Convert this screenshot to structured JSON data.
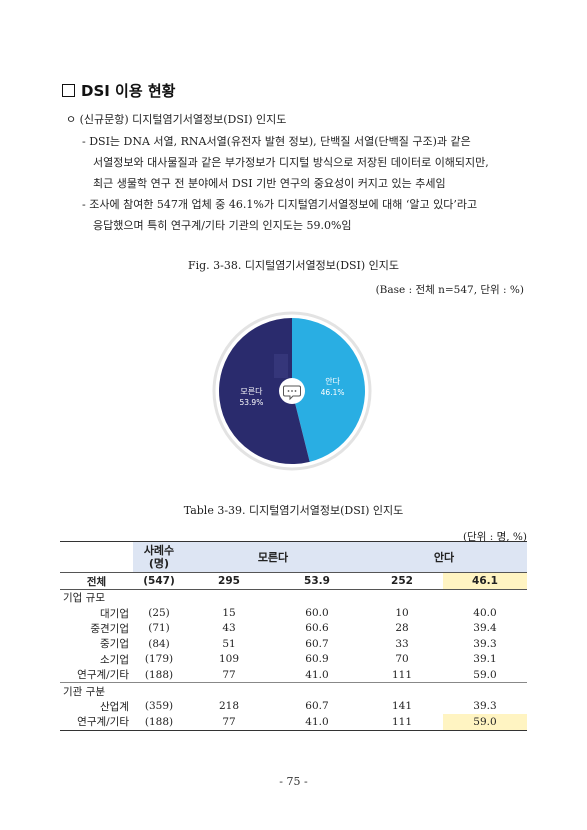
{
  "section": {
    "title": "DSI 이용 현황"
  },
  "subheading": "ㅇ (신규문항) 디지털염기서열정보(DSI) 인지도",
  "bullets": [
    {
      "lines": [
        "- DSI는 DNA 서열, RNA서열(유전자 발현 정보), 단백질 서열(단백질 구조)과 같은",
        "서열정보와 대사물질과 같은 부가정보가 디지털 방식으로 저장된 데이터로 이해되지만,",
        "최근 생물학 연구 전 분야에서 DSI  기반 연구의 중요성이 커지고 있는 추세임"
      ]
    },
    {
      "lines": [
        "- 조사에 참여한 547개 업체 중 46.1%가 디지털염기서열정보에 대해 ‘알고 있다’라고",
        "응답했으며 특히 연구계/기타 기관의 인지도는 59.0%임"
      ]
    }
  ],
  "figure": {
    "caption": "Fig. 3-38. 디지털염기서열정보(DSI) 인지도",
    "base": "(Base : 전체 n=547, 단위 : %)"
  },
  "chart_data": {
    "type": "pie",
    "title": "",
    "slices": [
      {
        "label": "안다",
        "value": 46.1,
        "value_label": "46.1%",
        "color": "#29aee3"
      },
      {
        "label": "모른다",
        "value": 53.9,
        "value_label": "53.9%",
        "color": "#2a2b6d"
      }
    ],
    "center_icon": "speech-bubble-icon",
    "legend": "none"
  },
  "table": {
    "caption": "Table 3-39. 디지털염기서열정보(DSI) 인지도",
    "unit": "(단위 : 명, %)",
    "header": {
      "col1": "사례수",
      "col1b": "(명)",
      "col2": "모른다",
      "col3": "안다"
    },
    "total": {
      "label": "전체",
      "n": "(547)",
      "a": "295",
      "ap": "53.9",
      "b": "252",
      "bp": "46.1"
    },
    "groups": [
      {
        "title": "기업 규모",
        "rows": [
          {
            "label": "대기업",
            "n": "(25)",
            "a": "15",
            "ap": "60.0",
            "b": "10",
            "bp": "40.0"
          },
          {
            "label": "중견기업",
            "n": "(71)",
            "a": "43",
            "ap": "60.6",
            "b": "28",
            "bp": "39.4"
          },
          {
            "label": "중기업",
            "n": "(84)",
            "a": "51",
            "ap": "60.7",
            "b": "33",
            "bp": "39.3"
          },
          {
            "label": "소기업",
            "n": "(179)",
            "a": "109",
            "ap": "60.9",
            "b": "70",
            "bp": "39.1"
          },
          {
            "label": "연구계/기타",
            "n": "(188)",
            "a": "77",
            "ap": "41.0",
            "b": "111",
            "bp": "59.0"
          }
        ]
      },
      {
        "title": "기관 구분",
        "rows": [
          {
            "label": "산업계",
            "n": "(359)",
            "a": "218",
            "ap": "60.7",
            "b": "141",
            "bp": "39.3"
          },
          {
            "label": "연구계/기타",
            "n": "(188)",
            "a": "77",
            "ap": "41.0",
            "b": "111",
            "bp": "59.0"
          }
        ]
      }
    ]
  },
  "page_number": "- 75 -"
}
